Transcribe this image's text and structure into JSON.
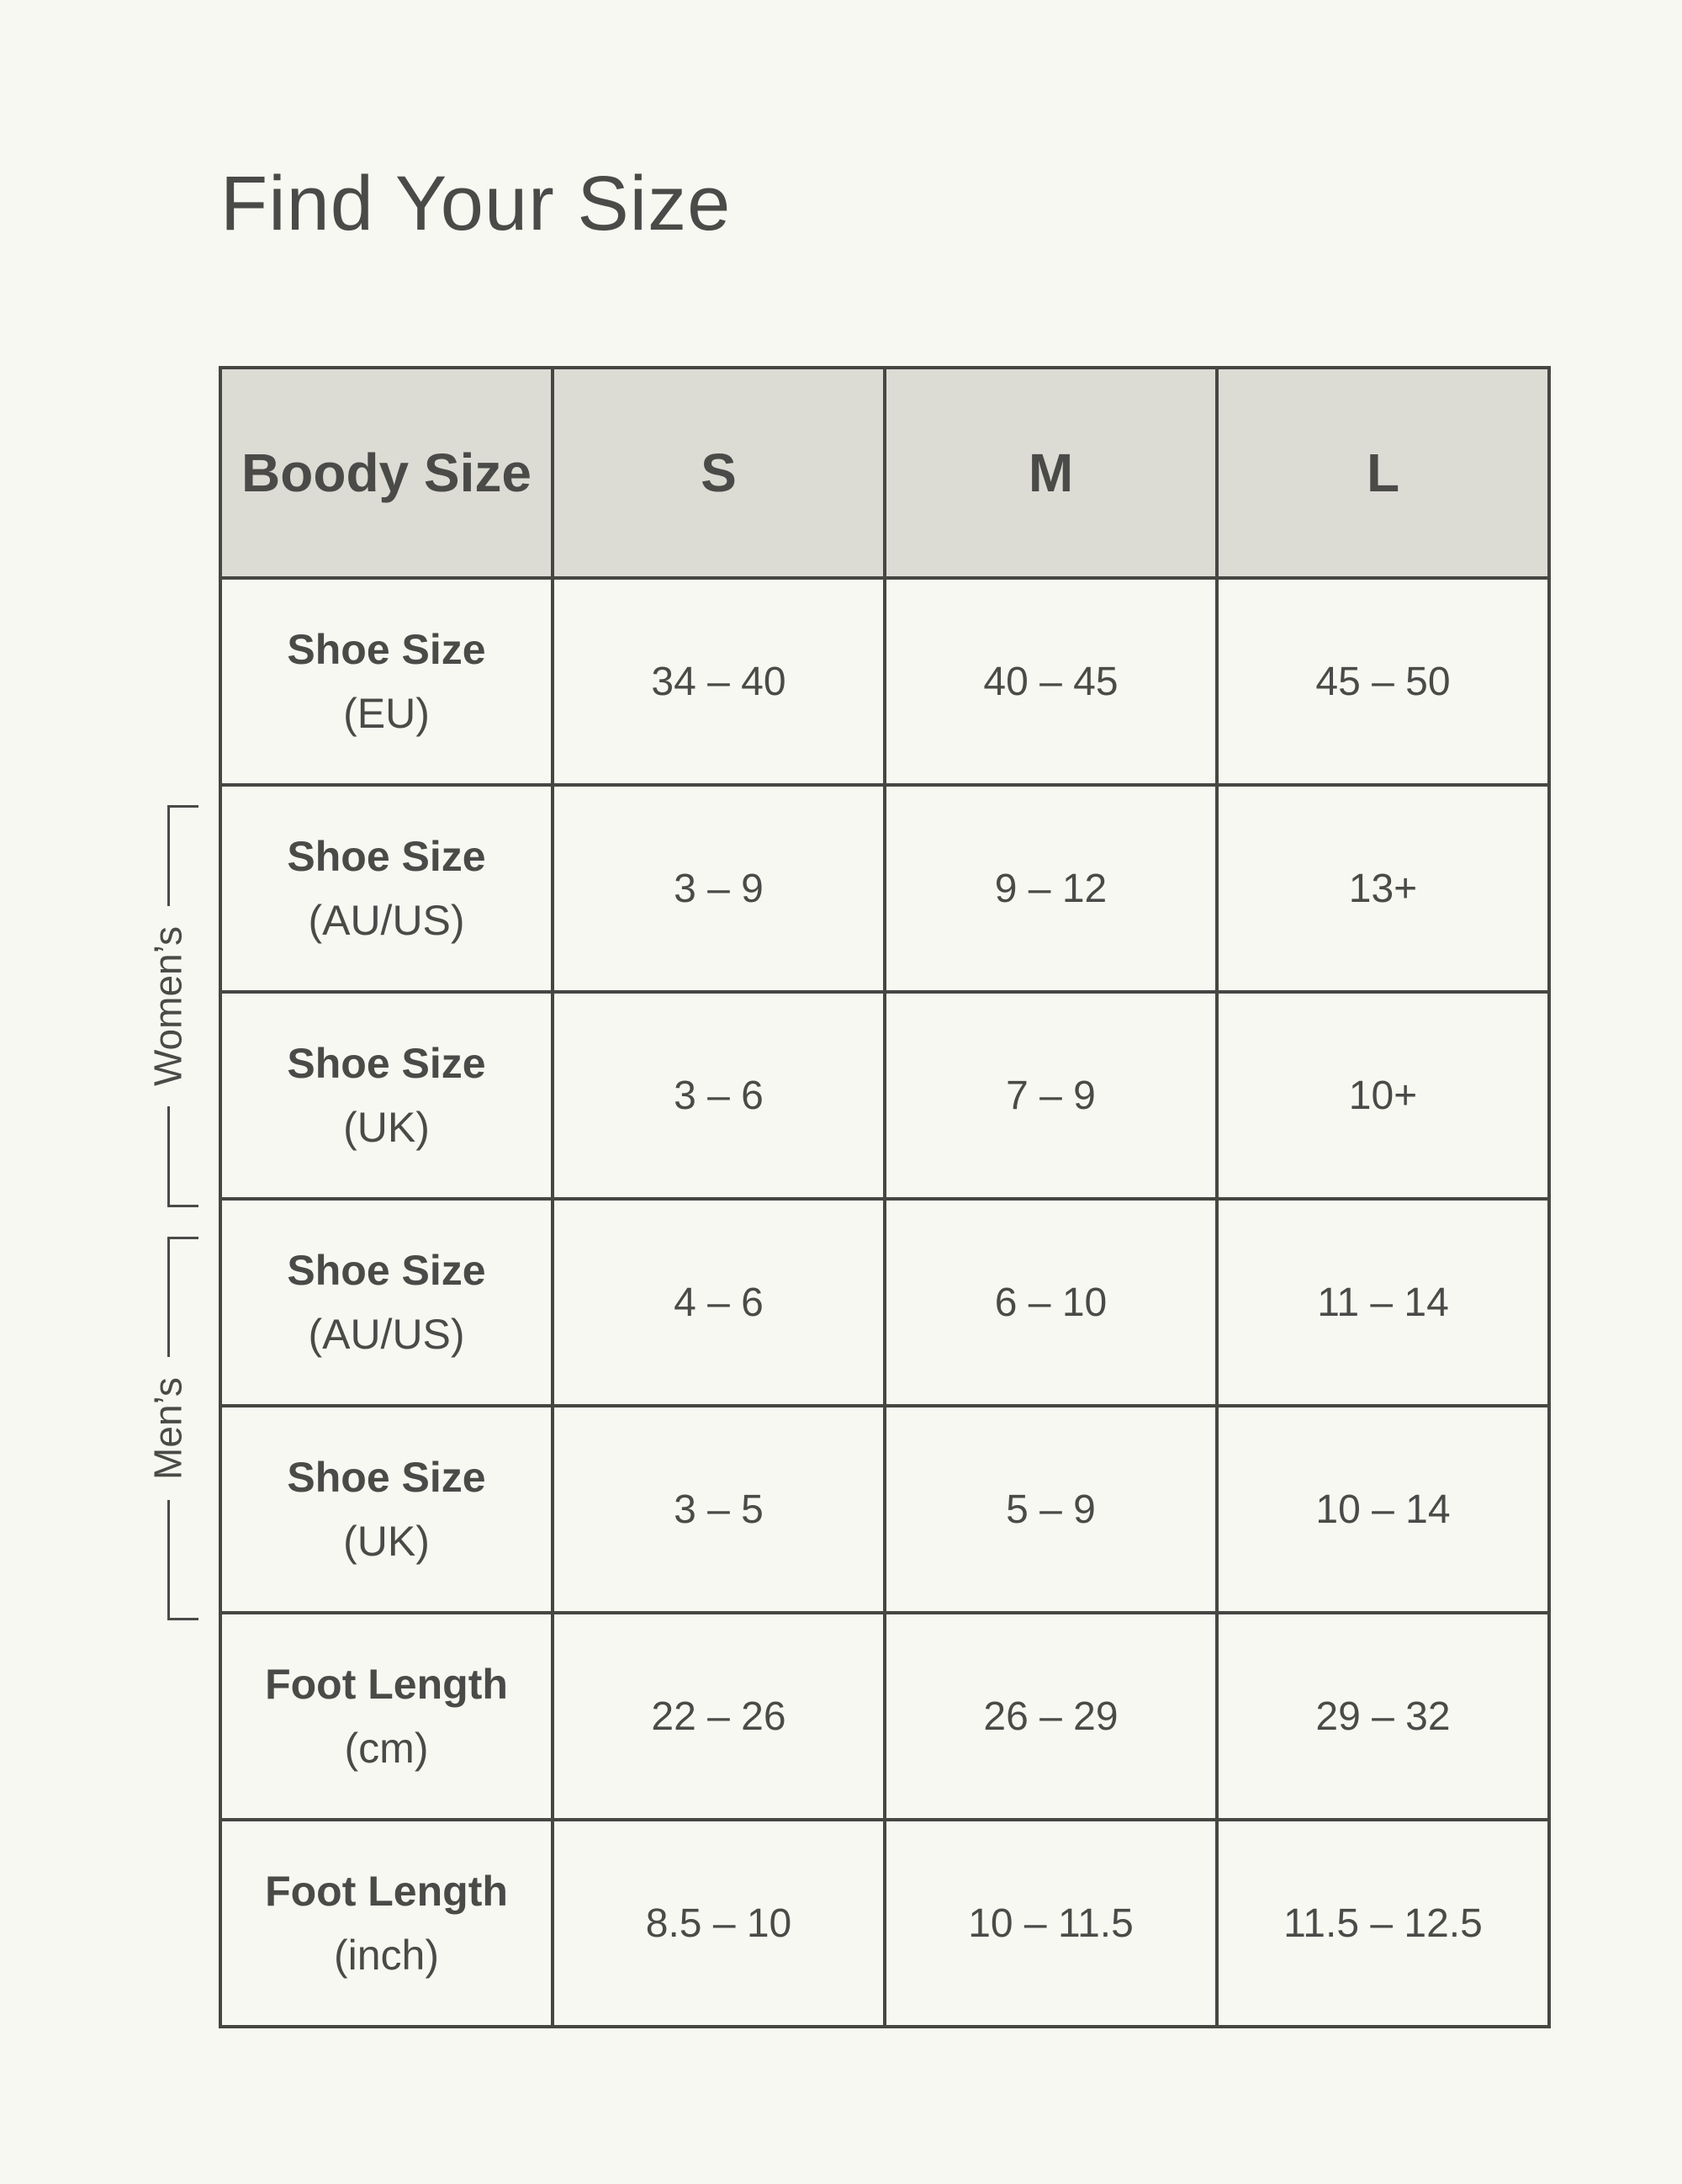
{
  "title": "Find Your Size",
  "table": {
    "header": [
      "Boody Size",
      "S",
      "M",
      "L"
    ],
    "rows": [
      {
        "label": "Shoe Size",
        "unit": "(EU)",
        "values": [
          "34 – 40",
          "40 – 45",
          "45 – 50"
        ]
      },
      {
        "label": "Shoe Size",
        "unit": "(AU/US)",
        "values": [
          "3 – 9",
          "9 – 12",
          "13+"
        ]
      },
      {
        "label": "Shoe Size",
        "unit": "(UK)",
        "values": [
          "3 – 6",
          "7 – 9",
          "10+"
        ]
      },
      {
        "label": "Shoe Size",
        "unit": "(AU/US)",
        "values": [
          "4 – 6",
          "6 – 10",
          "11 – 14"
        ]
      },
      {
        "label": "Shoe Size",
        "unit": "(UK)",
        "values": [
          "3 – 5",
          "5 – 9",
          "10 – 14"
        ]
      },
      {
        "label": "Foot Length",
        "unit": "(cm)",
        "values": [
          "22 – 26",
          "26 – 29",
          "29 – 32"
        ]
      },
      {
        "label": "Foot Length",
        "unit": "(inch)",
        "values": [
          "8.5 – 10",
          "10 – 11.5",
          "11.5 – 12.5"
        ]
      }
    ]
  },
  "brackets": {
    "womens": {
      "label": "Women’s"
    },
    "mens": {
      "label": "Men’s"
    }
  },
  "colors": {
    "page_bg": "#f8f8f2",
    "header_bg": "#dcdcd4",
    "border": "#464643",
    "text": "#4a4a48"
  }
}
